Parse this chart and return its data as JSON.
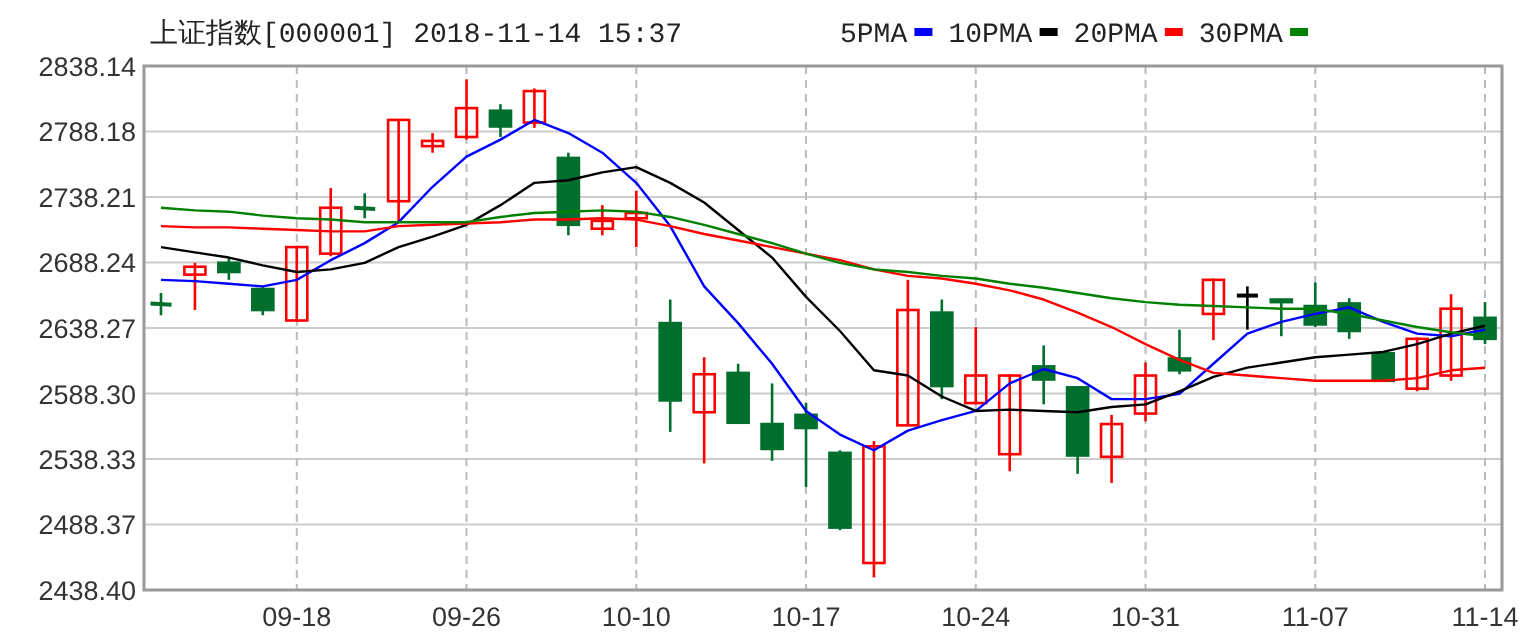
{
  "chart_data": {
    "type": "candlestick",
    "title": "上证指数[000001] 2018-11-14 15:37",
    "categories": [
      null,
      null,
      null,
      null,
      "09-18",
      null,
      null,
      null,
      null,
      "09-26",
      null,
      null,
      null,
      null,
      "10-10",
      null,
      null,
      null,
      null,
      "10-17",
      null,
      null,
      null,
      null,
      "10-24",
      null,
      null,
      null,
      null,
      "10-31",
      null,
      null,
      null,
      null,
      "11-07",
      null,
      null,
      null,
      null,
      "11-14"
    ],
    "ohlc": [
      [
        2657,
        2665,
        2648,
        2656
      ],
      [
        2679,
        2688,
        2652,
        2685
      ],
      [
        2688,
        2692,
        2675,
        2681
      ],
      [
        2668,
        2671,
        2648,
        2652
      ],
      [
        2644,
        2701,
        2643,
        2700
      ],
      [
        2695,
        2745,
        2693,
        2730
      ],
      [
        2730,
        2741,
        2722,
        2729
      ],
      [
        2735,
        2797,
        2719,
        2797
      ],
      [
        2777,
        2787,
        2772,
        2781
      ],
      [
        2784,
        2828,
        2782,
        2806
      ],
      [
        2804,
        2809,
        2784,
        2792
      ],
      [
        2795,
        2821,
        2791,
        2819
      ],
      [
        2768,
        2772,
        2709,
        2717
      ],
      [
        2714,
        2732,
        2709,
        2720
      ],
      [
        2722,
        2743,
        2700,
        2726
      ],
      [
        2642,
        2660,
        2559,
        2583
      ],
      [
        2574,
        2616,
        2535,
        2603
      ],
      [
        2604,
        2611,
        2565,
        2566
      ],
      [
        2565,
        2596,
        2537,
        2546
      ],
      [
        2572,
        2581,
        2517,
        2562
      ],
      [
        2543,
        2545,
        2484,
        2486
      ],
      [
        2459,
        2552,
        2448,
        2548
      ],
      [
        2564,
        2675,
        2564,
        2652
      ],
      [
        2650,
        2660,
        2584,
        2594
      ],
      [
        2581,
        2639,
        2580,
        2602
      ],
      [
        2542,
        2603,
        2529,
        2602
      ],
      [
        2609,
        2625,
        2580,
        2599
      ],
      [
        2593,
        2594,
        2527,
        2541
      ],
      [
        2540,
        2572,
        2520,
        2565
      ],
      [
        2573,
        2612,
        2567,
        2602
      ],
      [
        2615,
        2637,
        2603,
        2606
      ],
      [
        2649,
        2676,
        2629,
        2675
      ],
      [
        2663,
        2670,
        2637,
        2663
      ],
      [
        2660,
        2660,
        2632,
        2658
      ],
      [
        2655,
        2673,
        2639,
        2641
      ],
      [
        2657,
        2661,
        2630,
        2636
      ],
      [
        2619,
        2619,
        2598,
        2598
      ],
      [
        2592,
        2631,
        2590,
        2630
      ],
      [
        2602,
        2664,
        2598,
        2653
      ],
      [
        2646,
        2658,
        2626,
        2630
      ]
    ],
    "colors": [
      "#006f2e",
      "#ff0000",
      "#006f2e",
      "#006f2e",
      "#ff0000",
      "#ff0000",
      "#006f2e",
      "#ff0000",
      "#ff0000",
      "#ff0000",
      "#006f2e",
      "#ff0000",
      "#006f2e",
      "#ff0000",
      "#ff0000",
      "#006f2e",
      "#ff0000",
      "#006f2e",
      "#006f2e",
      "#006f2e",
      "#006f2e",
      "#ff0000",
      "#ff0000",
      "#006f2e",
      "#ff0000",
      "#ff0000",
      "#006f2e",
      "#006f2e",
      "#ff0000",
      "#ff0000",
      "#006f2e",
      "#ff0000",
      "#000000",
      "#006f2e",
      "#006f2e",
      "#006f2e",
      "#006f2e",
      "#ff0000",
      "#ff0000",
      "#006f2e"
    ],
    "series": [
      {
        "type": "line",
        "name": "5PMA",
        "color": "#0000ff",
        "values": [
          2675,
          2674,
          2672,
          2670,
          2675,
          2690,
          2703,
          2719,
          2746,
          2769,
          2782,
          2797,
          2787,
          2772,
          2749,
          2716,
          2670,
          2642,
          2611,
          2575,
          2557,
          2545,
          2560,
          2568,
          2575,
          2596,
          2607,
          2600,
          2584,
          2584,
          2588,
          2611,
          2634,
          2643,
          2649,
          2654,
          2643,
          2634,
          2632,
          2637
        ]
      },
      {
        "type": "line",
        "name": "10PMA",
        "color": "#000000",
        "values": [
          2700,
          2696,
          2692,
          2686,
          2681,
          2683,
          2688,
          2700,
          2708,
          2717,
          2732,
          2749,
          2751,
          2757,
          2761,
          2749,
          2734,
          2713,
          2692,
          2662,
          2636,
          2606,
          2602,
          2586,
          2575,
          2576,
          2575,
          2574,
          2578,
          2580,
          2590,
          2601,
          2608,
          2612,
          2616,
          2618,
          2620,
          2626,
          2634,
          2640
        ]
      },
      {
        "type": "line",
        "name": "20PMA",
        "color": "#ff0000",
        "values": [
          2716,
          2715,
          2715,
          2714,
          2713,
          2712,
          2712,
          2716,
          2717,
          2718,
          2719,
          2721,
          2721,
          2722,
          2721,
          2716,
          2710,
          2705,
          2700,
          2695,
          2690,
          2683,
          2678,
          2676,
          2672,
          2667,
          2660,
          2650,
          2639,
          2626,
          2614,
          2604,
          2602,
          2600,
          2598,
          2598,
          2598,
          2600,
          2606,
          2608
        ]
      },
      {
        "type": "line",
        "name": "30PMA",
        "color": "#008000",
        "values": [
          2730,
          2728,
          2727,
          2724,
          2722,
          2721,
          2719,
          2719,
          2719,
          2719,
          2723,
          2726,
          2727,
          2728,
          2727,
          2723,
          2717,
          2710,
          2703,
          2695,
          2688,
          2683,
          2681,
          2678,
          2676,
          2672,
          2669,
          2665,
          2661,
          2658,
          2656,
          2655,
          2654,
          2653,
          2653,
          2649,
          2644,
          2639,
          2635,
          2632
        ]
      }
    ],
    "ylim": [
      2438.4,
      2838.14
    ],
    "yticks": [
      2838.14,
      2788.18,
      2738.21,
      2688.24,
      2638.27,
      {
        "value": 2588.3,
        "label": "2588.30"
      },
      2538.33,
      2488.37,
      {
        "value": 2438.4,
        "label": "2438.40"
      }
    ],
    "grid": true,
    "legend": "top"
  }
}
